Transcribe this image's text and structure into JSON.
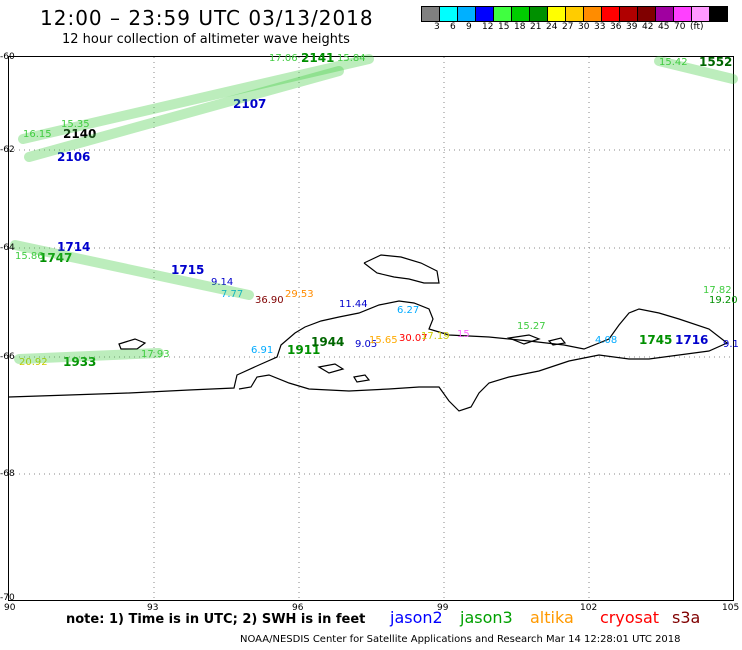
{
  "header": {
    "title": "12:00 – 23:59 UTC 03/13/2018",
    "subtitle": "12 hour collection of altimeter wave heights"
  },
  "legend": {
    "colors": [
      "#808080",
      "#00ffff",
      "#00b0ff",
      "#0000ff",
      "#40ff40",
      "#00cc00",
      "#009000",
      "#ffff00",
      "#ffcc00",
      "#ff8c00",
      "#ff0000",
      "#b00000",
      "#800000",
      "#a000a0",
      "#ff40ff",
      "#ff99ff",
      "#000000"
    ],
    "labels": [
      "3",
      "6",
      "9",
      "12",
      "15",
      "18",
      "21",
      "24",
      "27",
      "30",
      "33",
      "36",
      "39",
      "42",
      "45",
      "70",
      "(ft)"
    ]
  },
  "axes": {
    "y_labels": [
      "-60",
      "-62",
      "-64",
      "-66",
      "-68",
      "-70"
    ],
    "x_labels": [
      "90",
      "93",
      "96",
      "99",
      "102",
      "105"
    ]
  },
  "map": {
    "observations": [
      {
        "t": "2141",
        "c": "#009000",
        "b": true
      },
      {
        "t": "15.84",
        "c": "#40cc40"
      },
      {
        "t": "17.06",
        "c": "#40cc40"
      },
      {
        "t": "2107",
        "c": "#0000cc",
        "b": true
      },
      {
        "t": "2140",
        "c": "#000000",
        "b": true
      },
      {
        "t": "2106",
        "c": "#0000cc",
        "b": true
      },
      {
        "t": "16.15",
        "c": "#40cc40"
      },
      {
        "t": "15.35",
        "c": "#40cc40"
      },
      {
        "t": "1552",
        "c": "#006600",
        "b": true
      },
      {
        "t": "15.42",
        "c": "#40cc40"
      },
      {
        "t": "1714",
        "c": "#0000cc",
        "b": true
      },
      {
        "t": "1747",
        "c": "#009000",
        "b": true
      },
      {
        "t": "15.86",
        "c": "#40cc40"
      },
      {
        "t": "1715",
        "c": "#0000cc",
        "b": true
      },
      {
        "t": "9.14",
        "c": "#0000cc"
      },
      {
        "t": "7.77",
        "c": "#00aaff"
      },
      {
        "t": "36.90",
        "c": "#800000"
      },
      {
        "t": "29.53",
        "c": "#ff8c00"
      },
      {
        "t": "11.44",
        "c": "#0000cc"
      },
      {
        "t": "6.27",
        "c": "#00aaff"
      },
      {
        "t": "17.82",
        "c": "#40cc40"
      },
      {
        "t": "19.20",
        "c": "#009000"
      },
      {
        "t": "15.27",
        "c": "#40cc40"
      },
      {
        "t": "1911",
        "c": "#009000",
        "b": true
      },
      {
        "t": "1944",
        "c": "#006600",
        "b": true
      },
      {
        "t": "6.91",
        "c": "#00aaff"
      },
      {
        "t": "9.05",
        "c": "#0000cc"
      },
      {
        "t": "15.65",
        "c": "#ffaa00"
      },
      {
        "t": "30.07",
        "c": "#ff0000"
      },
      {
        "t": "17.19",
        "c": "#cccc00"
      },
      {
        "t": "15",
        "c": "#ff66ff"
      },
      {
        "t": "4.08",
        "c": "#00aaff"
      },
      {
        "t": "1745",
        "c": "#009000",
        "b": true
      },
      {
        "t": "1716",
        "c": "#0000cc",
        "b": true
      },
      {
        "t": "9.1",
        "c": "#0000cc"
      },
      {
        "t": "1933",
        "c": "#009000",
        "b": true
      },
      {
        "t": "20.92",
        "c": "#cccc00"
      },
      {
        "t": "17.93",
        "c": "#40cc40"
      }
    ]
  },
  "footer": {
    "note": "note:  1) Time is in UTC;  2) SWH is in feet",
    "satellites": [
      {
        "name": "jason2",
        "color": "#0000ff"
      },
      {
        "name": "jason3",
        "color": "#00a000"
      },
      {
        "name": "altika",
        "color": "#ff9900"
      },
      {
        "name": "cryosat",
        "color": "#ff0000"
      },
      {
        "name": "s3a",
        "color": "#800000"
      }
    ],
    "credit": "NOAA/NESDIS Center for Satellite Applications and Research    Mar 14 12:28:01 UTC 2018"
  }
}
